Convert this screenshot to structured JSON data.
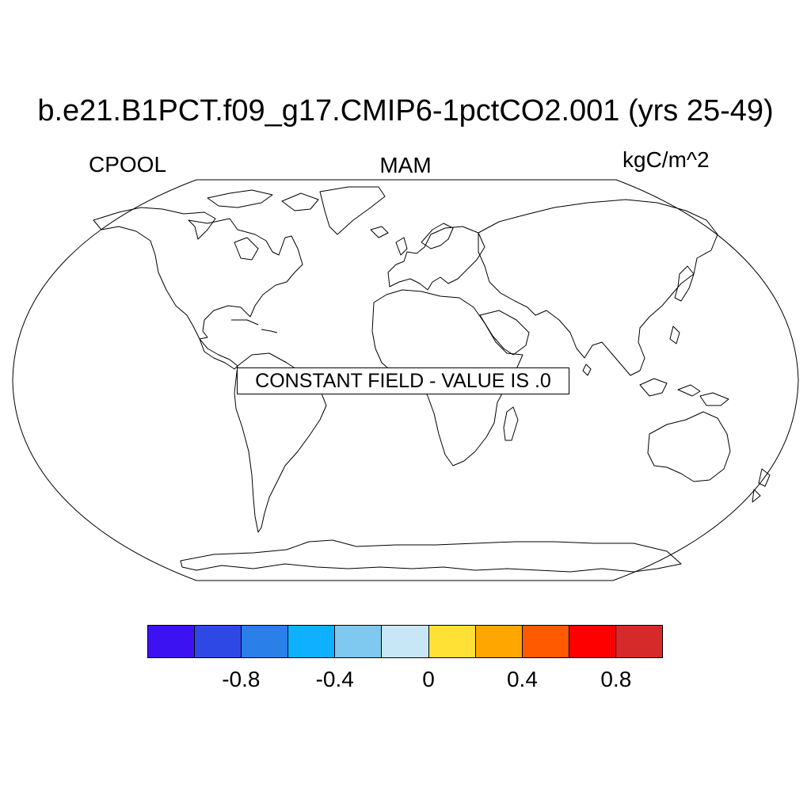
{
  "title": "b.e21.B1PCT.f09_g17.CMIP6-1pctCO2.001 (yrs 25-49)",
  "left_string": "CPOOL",
  "center_string": "MAM",
  "right_string": "kgC/m^2",
  "notice": "CONSTANT FIELD - VALUE IS .0",
  "map": {
    "projection": "Robinson",
    "coastlines": true,
    "fill": "none"
  },
  "colorbar": {
    "colors": [
      "#3d12f2",
      "#2e48e6",
      "#2a7fe9",
      "#0fb0ff",
      "#7fc8ef",
      "#c7e6f6",
      "#ffe135",
      "#ffa600",
      "#ff5a00",
      "#ff0000",
      "#d62a2a"
    ],
    "labels": [
      "-0.8",
      "-0.4",
      "0",
      "0.4",
      "0.8"
    ]
  }
}
